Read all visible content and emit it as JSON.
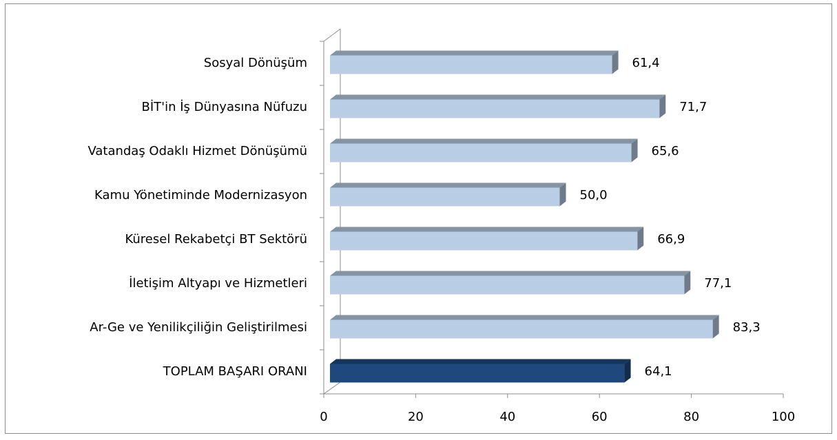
{
  "chart_data": {
    "type": "bar3d-horizontal",
    "categories": [
      "Sosyal Dönüşüm",
      "BİT'in İş Dünyasına Nüfuzu",
      "Vatandaş Odaklı Hizmet Dönüşümü",
      "Kamu Yönetiminde Modernizasyon",
      "Küresel Rekabetçi BT Sektörü",
      "İletişim Altyapı ve Hizmetleri",
      "Ar-Ge ve Yenilikçiliğin Geliştirilmesi",
      "TOPLAM BAŞARI ORANI"
    ],
    "values": [
      61.4,
      71.7,
      65.6,
      50.0,
      66.9,
      77.1,
      83.3,
      64.1
    ],
    "value_labels": [
      "61,4",
      "71,7",
      "65,6",
      "50,0",
      "66,9",
      "77,1",
      "83,3",
      "64,1"
    ],
    "colors": [
      "#b9cde5",
      "#b9cde5",
      "#b9cde5",
      "#b9cde5",
      "#b9cde5",
      "#b9cde5",
      "#b9cde5",
      "#1f497d"
    ],
    "xlim": [
      0,
      100
    ],
    "xticks": [
      0,
      20,
      40,
      60,
      80,
      100
    ]
  }
}
